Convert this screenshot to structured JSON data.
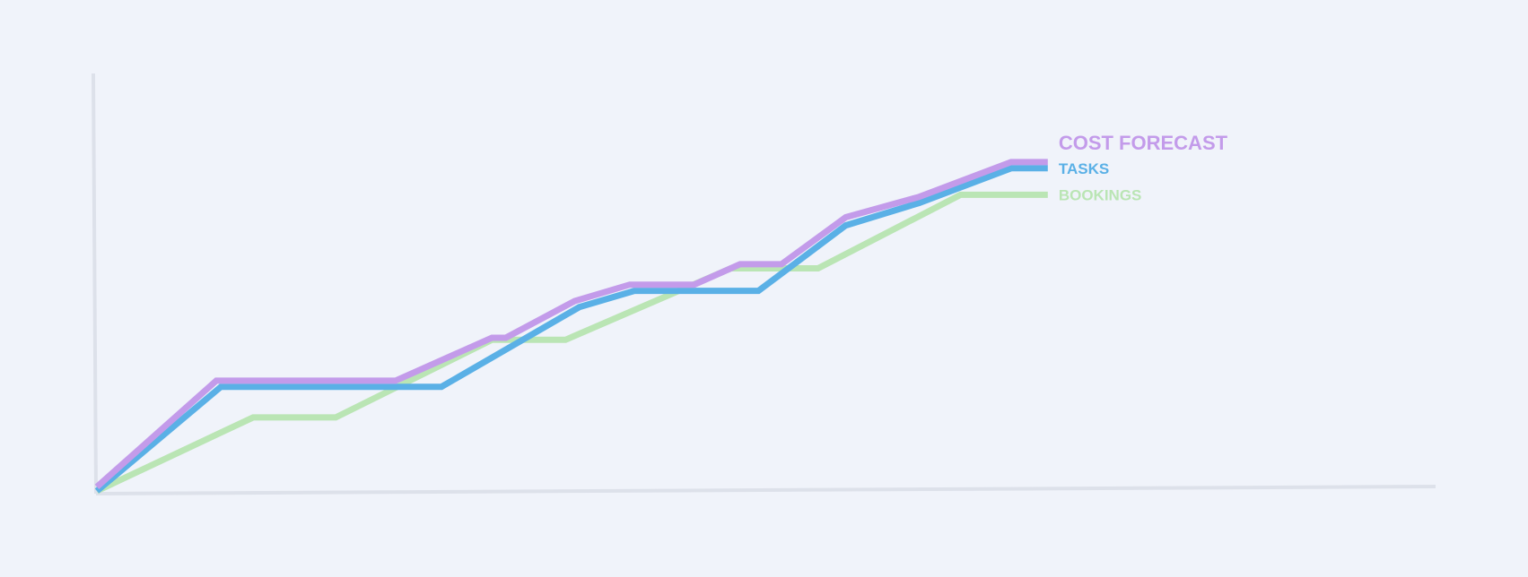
{
  "chart_data": {
    "type": "line",
    "step_like": true,
    "x": [
      0,
      1,
      2,
      3,
      4,
      5,
      6,
      7,
      8,
      9,
      10,
      11,
      12,
      13,
      14,
      15,
      16,
      17,
      18,
      19,
      20,
      21,
      22,
      23,
      24,
      25
    ],
    "ylim": [
      0,
      100
    ],
    "xlim": [
      0,
      25
    ],
    "grid": false,
    "legend": "inline-right",
    "series": [
      {
        "name": "COST FORECAST",
        "color": "#c39bea",
        "points": [
          [
            0,
            1
          ],
          [
            2.6,
            27
          ],
          [
            6.5,
            27
          ],
          [
            8.6,
            37.5
          ],
          [
            8.9,
            37.5
          ],
          [
            10.4,
            46.5
          ],
          [
            11.6,
            50.5
          ],
          [
            13,
            50.5
          ],
          [
            14,
            55.5
          ],
          [
            14.9,
            55.5
          ],
          [
            16.3,
            67
          ],
          [
            17.9,
            72
          ],
          [
            19.9,
            80.5
          ],
          [
            20.7,
            80.5
          ]
        ]
      },
      {
        "name": "TASKS",
        "color": "#5ab0e6",
        "points": [
          [
            0,
            0
          ],
          [
            2.7,
            25.5
          ],
          [
            7.5,
            25.5
          ],
          [
            10.5,
            45
          ],
          [
            11.7,
            49
          ],
          [
            14.4,
            49
          ],
          [
            16.3,
            65
          ],
          [
            17.9,
            70.5
          ],
          [
            19.9,
            79
          ],
          [
            20.7,
            79
          ]
        ]
      },
      {
        "name": "BOOKINGS",
        "color": "#bae5b4",
        "points": [
          [
            0,
            0
          ],
          [
            3.4,
            18
          ],
          [
            5.2,
            18
          ],
          [
            8.6,
            37
          ],
          [
            10.2,
            37
          ],
          [
            13.8,
            54.5
          ],
          [
            15.7,
            54.5
          ],
          [
            18.8,
            72.5
          ],
          [
            20.7,
            72.5
          ]
        ]
      }
    ]
  }
}
